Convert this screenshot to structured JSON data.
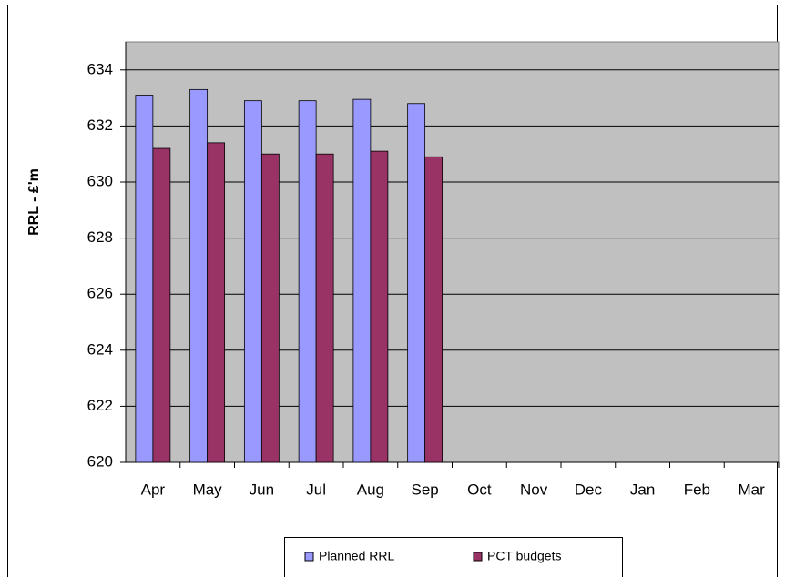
{
  "chart_data": {
    "type": "bar",
    "y_label": "RRL - £'m",
    "categories": [
      "Apr",
      "May",
      "Jun",
      "Jul",
      "Aug",
      "Sep",
      "Oct",
      "Nov",
      "Dec",
      "Jan",
      "Feb",
      "Mar"
    ],
    "series": [
      {
        "name": "Planned RRL",
        "color": "#9999ff",
        "values": [
          633.1,
          633.3,
          632.9,
          632.9,
          632.95,
          632.8,
          null,
          null,
          null,
          null,
          null,
          null
        ]
      },
      {
        "name": "PCT budgets",
        "color": "#993366",
        "values": [
          631.2,
          631.4,
          631.0,
          631.0,
          631.1,
          630.9,
          null,
          null,
          null,
          null,
          null,
          null
        ]
      }
    ],
    "ylim": [
      620,
      635
    ],
    "yticks": [
      620,
      622,
      624,
      626,
      628,
      630,
      632,
      634
    ],
    "grid": true,
    "legend": "bottom"
  }
}
